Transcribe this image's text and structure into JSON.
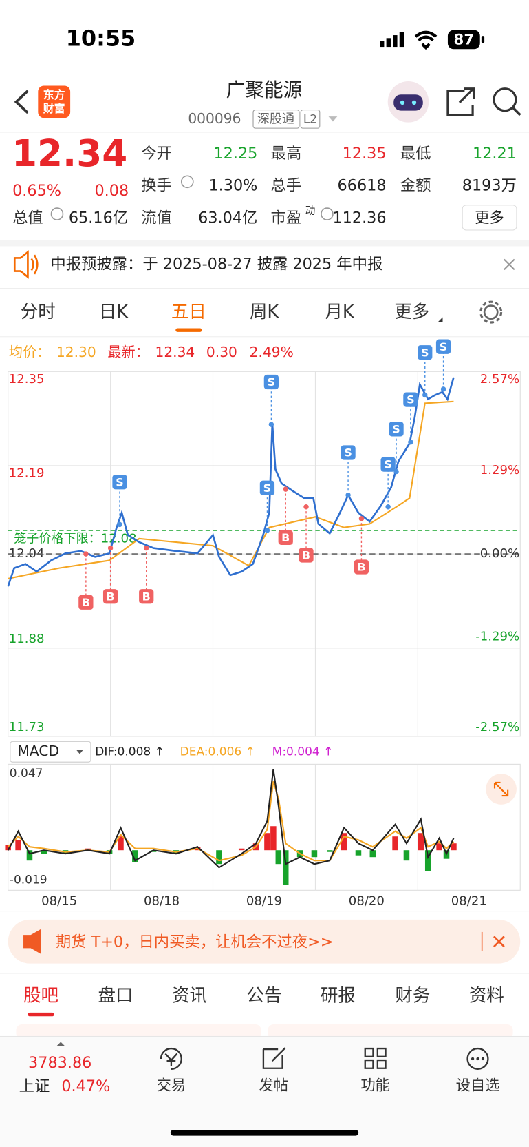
{
  "status": {
    "time": "10:55",
    "battery": "87"
  },
  "header": {
    "logo": [
      "东方",
      "财富"
    ],
    "title": "广聚能源",
    "code": "000096",
    "tags": [
      "深股通",
      "L2"
    ]
  },
  "quote": {
    "price": "12.34",
    "change_pct": "0.65%",
    "change": "0.08",
    "fields": [
      {
        "label": "今开",
        "value": "12.25",
        "color": "#17a32b"
      },
      {
        "label": "最高",
        "value": "12.35",
        "color": "#e8262a"
      },
      {
        "label": "最低",
        "value": "12.21",
        "color": "#17a32b"
      },
      {
        "label": "换手",
        "value": "1.30%"
      },
      {
        "label": "总手",
        "value": "66618"
      },
      {
        "label": "金额",
        "value": "8193万"
      },
      {
        "label": "总值",
        "value": "65.16亿"
      },
      {
        "label": "流值",
        "value": "63.04亿"
      },
      {
        "label": "市盈",
        "sup": "动",
        "value": "112.36"
      }
    ],
    "more": "更多"
  },
  "notice": "中报预披露：于 2025-08-27 披露 2025 年中报",
  "tabs": [
    "分时",
    "日K",
    "五日",
    "周K",
    "月K",
    "更多"
  ],
  "active_tab": 2,
  "info": {
    "avg_label": "均价：",
    "avg": "12.30",
    "last_label": "最新：",
    "last": "12.34",
    "change": "0.30",
    "pct": "2.49%"
  },
  "chart": {
    "type": "line",
    "categories": [
      "08/15",
      "08/18",
      "08/19",
      "08/20",
      "08/21"
    ],
    "xlim": [
      0,
      5
    ],
    "ylim": [
      11.73,
      12.35
    ],
    "yticks": [
      12.35,
      12.19,
      12.04,
      11.88,
      11.73
    ],
    "y2lim": [
      -2.57,
      2.57
    ],
    "y2ticks": [
      {
        "value": 2.57,
        "label": "2.57%"
      },
      {
        "value": 1.29,
        "label": "1.29%"
      },
      {
        "value": 0,
        "label": "0.00%"
      },
      {
        "value": -1.29,
        "label": "-1.29%"
      },
      {
        "value": -2.57,
        "label": "-2.57%"
      }
    ],
    "price_color": "#2f6fcf",
    "avg_color": "#f5a623",
    "grid": true,
    "x": [
      0,
      0.06,
      0.17,
      0.28,
      0.42,
      0.56,
      0.71,
      0.85,
      0.99,
      1.06,
      1.11,
      1.17,
      1.28,
      1.42,
      1.64,
      1.85,
      2,
      2.06,
      2.17,
      2.28,
      2.39,
      2.49,
      2.55,
      2.58,
      2.61,
      2.67,
      2.78,
      2.89,
      2.98,
      3.03,
      3.14,
      3.24,
      3.32,
      3.42,
      3.53,
      3.64,
      3.74,
      3.81,
      3.92,
      3.97,
      4.02,
      4.1,
      4.17,
      4.24,
      4.29,
      4.35
    ],
    "price": [
      11.985,
      12.016,
      12.023,
      12.01,
      12.029,
      12.041,
      12.045,
      12.035,
      12.041,
      12.085,
      12.11,
      12.072,
      12.06,
      12.05,
      12.045,
      12.041,
      12.072,
      12.035,
      12.004,
      12.01,
      12.023,
      12.072,
      12.11,
      12.262,
      12.184,
      12.16,
      12.147,
      12.135,
      12.135,
      12.091,
      12.075,
      12.11,
      12.14,
      12.11,
      12.095,
      12.122,
      12.153,
      12.197,
      12.228,
      12.272,
      12.328,
      12.303,
      12.31,
      12.315,
      12.303,
      12.34
    ],
    "avg_x": [
      0,
      0.5,
      0.99,
      1.28,
      2,
      2.35,
      2.55,
      3,
      3.28,
      3.53,
      3.81,
      3.92,
      4.07,
      4.35
    ],
    "avg": [
      11.998,
      12.016,
      12.029,
      12.066,
      12.054,
      12.02,
      12.085,
      12.103,
      12.085,
      12.091,
      12.122,
      12.135,
      12.296,
      12.299
    ],
    "lower_limit": {
      "label": "笼子价格下限：",
      "value": 12.08
    },
    "trades": [
      {
        "side": "B",
        "x": 0.76,
        "price": 12.04
      },
      {
        "side": "B",
        "x": 1.0,
        "price": 12.05
      },
      {
        "side": "B",
        "x": 1.35,
        "price": 12.05
      },
      {
        "side": "B",
        "x": 2.71,
        "price": 12.15
      },
      {
        "side": "B",
        "x": 2.91,
        "price": 12.12
      },
      {
        "side": "B",
        "x": 3.45,
        "price": 12.1
      },
      {
        "side": "S",
        "x": 1.09,
        "price": 12.09
      },
      {
        "side": "S",
        "x": 2.57,
        "price": 12.26
      },
      {
        "side": "S",
        "x": 2.53,
        "price": 12.08
      },
      {
        "side": "S",
        "x": 3.32,
        "price": 12.14
      },
      {
        "side": "S",
        "x": 3.71,
        "price": 12.12
      },
      {
        "side": "S",
        "x": 3.79,
        "price": 12.18
      },
      {
        "side": "S",
        "x": 3.93,
        "price": 12.23
      },
      {
        "side": "S",
        "x": 4.07,
        "price": 12.31
      },
      {
        "side": "S",
        "x": 4.25,
        "price": 12.32
      }
    ]
  },
  "macd": {
    "label": "MACD",
    "dif_label": "DIF:0.008 ↑",
    "dea_label": "DEA:0.006 ↑",
    "m_label": "M:0.004 ↑",
    "ylim": [
      -0.019,
      0.047
    ],
    "yticks": [
      0.047,
      -0.019
    ],
    "x": [
      0,
      0.1,
      0.21,
      0.35,
      0.56,
      0.78,
      0.99,
      1.1,
      1.24,
      1.42,
      1.64,
      1.85,
      2.06,
      2.28,
      2.42,
      2.53,
      2.59,
      2.64,
      2.71,
      2.85,
      2.99,
      3.14,
      3.28,
      3.42,
      3.56,
      3.78,
      3.89,
      4.03,
      4.1,
      4.21,
      4.28,
      4.35
    ],
    "dif": [
      0,
      0.011,
      -0.002,
      0,
      -0.002,
      0,
      -0.002,
      0.013,
      -0.006,
      0,
      -0.002,
      0.002,
      -0.01,
      -0.002,
      0.004,
      0.017,
      0.047,
      0.026,
      -0.008,
      -0.004,
      -0.008,
      -0.006,
      0.013,
      0.004,
      0,
      0.015,
      0.004,
      0.018,
      -0.004,
      0.007,
      -0.002,
      0.007
    ],
    "dea": [
      0.002,
      0.008,
      0.002,
      0.001,
      -0.001,
      0,
      -0.001,
      0.009,
      0.001,
      0.001,
      -0.001,
      0.001,
      -0.006,
      -0.003,
      0.002,
      0.012,
      0.04,
      0.03,
      0.004,
      -0.002,
      -0.006,
      -0.006,
      0.008,
      0.006,
      0.002,
      0.011,
      0.007,
      0.013,
      0.002,
      0.005,
      0.001,
      0.005
    ],
    "m": [
      0.003,
      0.006,
      -0.006,
      -0.002,
      -0.002,
      0.001,
      -0.002,
      0.008,
      -0.007,
      -0.001,
      -0.002,
      0.002,
      -0.008,
      0.001,
      0.004,
      0.01,
      0.014,
      -0.008,
      -0.02,
      -0.004,
      -0.004,
      -0.001,
      0.01,
      -0.003,
      -0.004,
      0.008,
      -0.006,
      0.01,
      -0.012,
      0.004,
      -0.005,
      0.004
    ]
  },
  "banner": "期货 T+0，日内买卖，让机会不过夜>>",
  "sections": [
    "股吧",
    "盘口",
    "资讯",
    "公告",
    "研报",
    "财务",
    "资料"
  ],
  "active_section": 0,
  "nav": {
    "index_value": "3783.86",
    "index_name": "上证",
    "index_pct": "0.47%",
    "items": [
      "交易",
      "发帖",
      "功能",
      "设自选"
    ]
  }
}
